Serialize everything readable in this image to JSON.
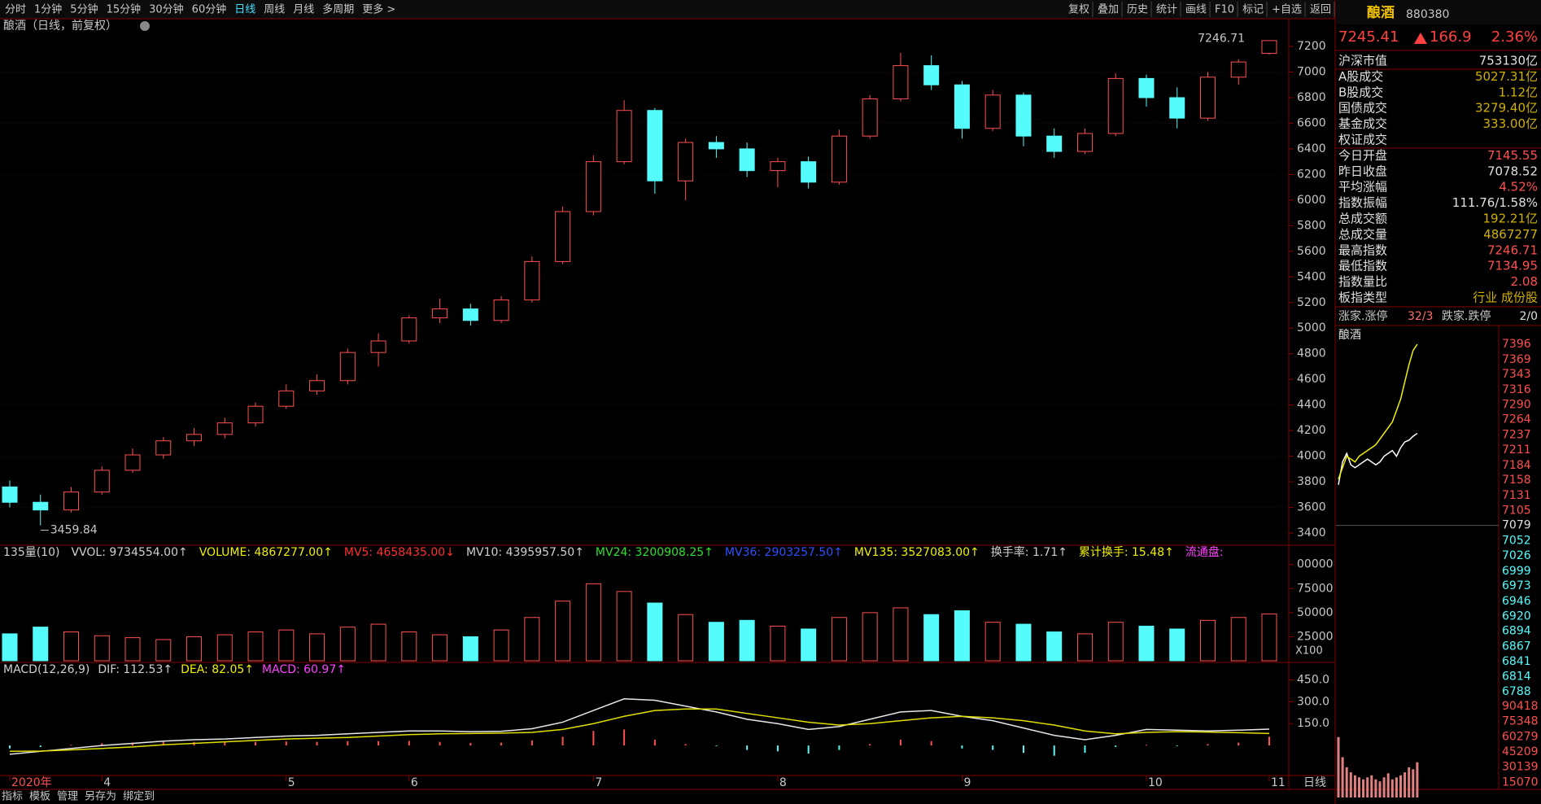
{
  "toolbar": {
    "periods": [
      "分时",
      "1分钟",
      "5分钟",
      "15分钟",
      "30分钟",
      "60分钟",
      "日线",
      "周线",
      "月线",
      "多周期",
      "更多 >"
    ],
    "active": "日线",
    "tools": [
      "复权",
      "叠加",
      "历史",
      "统计",
      "画线",
      "F10",
      "标记",
      "+自选",
      "返回"
    ]
  },
  "main": {
    "title": "酿酒（日线，前复权）",
    "ylim": [
      3311,
      7410
    ],
    "yticks": [
      3400,
      3600,
      3800,
      4000,
      4200,
      4400,
      4600,
      4800,
      5000,
      5200,
      5400,
      5600,
      5800,
      6000,
      6200,
      6400,
      6600,
      6800,
      7000,
      7200
    ],
    "candles": [
      [
        3760,
        3810,
        3600,
        3640
      ],
      [
        3640,
        3700,
        3459.84,
        3580
      ],
      [
        3580,
        3760,
        3560,
        3720
      ],
      [
        3720,
        3920,
        3700,
        3890
      ],
      [
        3890,
        4060,
        3870,
        4010
      ],
      [
        4010,
        4150,
        3980,
        4120
      ],
      [
        4120,
        4220,
        4080,
        4170
      ],
      [
        4170,
        4300,
        4140,
        4260
      ],
      [
        4260,
        4420,
        4230,
        4390
      ],
      [
        4390,
        4560,
        4370,
        4510
      ],
      [
        4510,
        4640,
        4480,
        4590
      ],
      [
        4590,
        4840,
        4560,
        4810
      ],
      [
        4810,
        4960,
        4700,
        4900
      ],
      [
        4900,
        5100,
        4880,
        5080
      ],
      [
        5080,
        5230,
        5040,
        5150
      ],
      [
        5150,
        5190,
        5020,
        5060
      ],
      [
        5060,
        5250,
        5040,
        5220
      ],
      [
        5220,
        5560,
        5200,
        5520
      ],
      [
        5520,
        5950,
        5500,
        5910
      ],
      [
        5910,
        6350,
        5880,
        6300
      ],
      [
        6300,
        6780,
        6280,
        6700
      ],
      [
        6700,
        6720,
        6050,
        6150
      ],
      [
        6150,
        6480,
        6000,
        6450
      ],
      [
        6450,
        6500,
        6330,
        6400
      ],
      [
        6400,
        6450,
        6180,
        6230
      ],
      [
        6230,
        6330,
        6100,
        6300
      ],
      [
        6300,
        6340,
        6090,
        6140
      ],
      [
        6140,
        6550,
        6120,
        6500
      ],
      [
        6500,
        6820,
        6480,
        6790
      ],
      [
        6790,
        7150,
        6770,
        7050
      ],
      [
        7050,
        7130,
        6860,
        6900
      ],
      [
        6900,
        6930,
        6480,
        6560
      ],
      [
        6560,
        6860,
        6540,
        6820
      ],
      [
        6820,
        6840,
        6420,
        6500
      ],
      [
        6500,
        6560,
        6330,
        6380
      ],
      [
        6380,
        6560,
        6360,
        6520
      ],
      [
        6520,
        6990,
        6500,
        6950
      ],
      [
        6950,
        6980,
        6730,
        6800
      ],
      [
        6800,
        6880,
        6560,
        6640
      ],
      [
        6640,
        7000,
        6620,
        6960
      ],
      [
        6960,
        7100,
        6900,
        7078.52
      ],
      [
        7145.55,
        7246.71,
        7134.95,
        7245.41
      ]
    ],
    "x_labels": [
      "2020年",
      null,
      null,
      "4",
      null,
      null,
      null,
      null,
      null,
      "5",
      null,
      null,
      null,
      "6",
      null,
      null,
      null,
      null,
      null,
      "7",
      null,
      null,
      null,
      null,
      null,
      "8",
      null,
      null,
      null,
      null,
      null,
      "9",
      null,
      null,
      null,
      null,
      null,
      "10",
      null,
      null,
      null,
      "11"
    ]
  },
  "volume": {
    "header": [
      {
        "text": "135量(10)",
        "color": "#d0d0d0"
      },
      {
        "text": "VVOL: 9734554.00↑",
        "color": "#d0d0d0"
      },
      {
        "text": "VOLUME: 4867277.00↑",
        "color": "#f0f000"
      },
      {
        "text": "MV5: 4658435.00↓",
        "color": "#ff3030"
      },
      {
        "text": "MV10: 4395957.50↑",
        "color": "#d0d0d0"
      },
      {
        "text": "MV24: 3200908.25↑",
        "color": "#30e030"
      },
      {
        "text": "MV36: 2903257.50↑",
        "color": "#3050ff"
      },
      {
        "text": "MV135: 3527083.00↑",
        "color": "#f0f000"
      },
      {
        "text": "换手率: 1.71↑",
        "color": "#d0d0d0"
      },
      {
        "text": "累计换手: 15.48↑",
        "color": "#f0f000"
      },
      {
        "text": "流通盘:",
        "color": "#ff40ff"
      }
    ],
    "ylim": [
      0,
      104000
    ],
    "yticks": [
      {
        "value": 100000,
        "label": "00000"
      },
      75000,
      50000,
      25000
    ],
    "unit": "X100",
    "values": [
      28000,
      35000,
      30000,
      26000,
      24000,
      22000,
      25000,
      27000,
      30000,
      32000,
      28000,
      35000,
      38000,
      30000,
      27000,
      25000,
      32000,
      45000,
      62000,
      80000,
      72000,
      60000,
      48000,
      40000,
      42000,
      36000,
      33000,
      45000,
      50000,
      55000,
      48000,
      52000,
      40000,
      38000,
      30000,
      28000,
      40000,
      36000,
      33000,
      42000,
      45000,
      48672.77
    ]
  },
  "macd": {
    "header": [
      {
        "text": "MACD(12,26,9)",
        "color": "#d0d0d0"
      },
      {
        "text": "DIF: 112.53↑",
        "color": "#d0d0d0"
      },
      {
        "text": "DEA: 82.05↑",
        "color": "#f0f000"
      },
      {
        "text": "MACD: 60.97↑",
        "color": "#ff40ff"
      }
    ],
    "ylim": [
      -200,
      525
    ],
    "yticks": [
      {
        "value": 450,
        "label": "450.0"
      },
      {
        "value": 300,
        "label": "300.0"
      },
      {
        "value": 150,
        "label": "150.0"
      }
    ],
    "hist": [
      -20,
      -10,
      5,
      15,
      20,
      25,
      25,
      22,
      25,
      28,
      25,
      30,
      30,
      32,
      25,
      18,
      20,
      35,
      60,
      100,
      110,
      40,
      10,
      -5,
      -30,
      -40,
      -55,
      -30,
      10,
      40,
      30,
      -20,
      -30,
      -50,
      -70,
      -50,
      -10,
      5,
      -5,
      10,
      20,
      60.97
    ],
    "dif": [
      -60,
      -40,
      -20,
      0,
      15,
      30,
      40,
      45,
      55,
      65,
      70,
      80,
      90,
      100,
      100,
      95,
      98,
      115,
      160,
      240,
      320,
      310,
      270,
      230,
      180,
      150,
      110,
      130,
      180,
      230,
      240,
      200,
      170,
      120,
      70,
      40,
      70,
      110,
      105,
      100,
      105,
      112.53
    ],
    "dea": [
      -40,
      -38,
      -30,
      -20,
      -10,
      5,
      15,
      25,
      35,
      45,
      50,
      55,
      65,
      75,
      80,
      82,
      85,
      90,
      110,
      150,
      200,
      240,
      250,
      250,
      220,
      190,
      160,
      140,
      150,
      170,
      190,
      200,
      190,
      170,
      140,
      100,
      80,
      90,
      95,
      92,
      88,
      82.05
    ]
  },
  "period_label": "日线",
  "right_panel": {
    "name": "酿酒",
    "code": "880380",
    "price": "7245.41",
    "change": "166.9",
    "pct": "2.36%",
    "rows": [
      {
        "label": "沪深市值",
        "value": "753130亿",
        "color": "#e0e0e0"
      },
      {
        "label": "A股成交",
        "value": "5027.31亿",
        "color": "#d0b000"
      },
      {
        "label": "B股成交",
        "value": "1.12亿",
        "color": "#d0b000"
      },
      {
        "label": "国债成交",
        "value": "3279.40亿",
        "color": "#d0b000"
      },
      {
        "label": "基金成交",
        "value": "333.00亿",
        "color": "#d0b000"
      },
      {
        "label": "权证成交"
      },
      {
        "label": "今日开盘",
        "value": "7145.55",
        "color": "#ff5050"
      },
      {
        "label": "昨日收盘",
        "value": "7078.52",
        "color": "#e0e0e0"
      },
      {
        "label": "平均涨幅",
        "value": "4.52%",
        "color": "#ff5050"
      },
      {
        "label": "指数振幅",
        "value": "111.76/1.58%",
        "color": "#e0e0e0"
      },
      {
        "label": "总成交额",
        "value": "192.21亿",
        "color": "#d0b000"
      },
      {
        "label": "总成交量",
        "value": "4867277",
        "color": "#d0b000"
      },
      {
        "label": "最高指数",
        "value": "7246.71",
        "color": "#ff5050"
      },
      {
        "label": "最低指数",
        "value": "7134.95",
        "color": "#ff5050"
      },
      {
        "label": "指数量比",
        "value": "2.08",
        "color": "#ff5050"
      },
      {
        "label": "板指类型",
        "value": "行业 成份股",
        "color": "#d0b000"
      }
    ],
    "breadth": {
      "up_label": "涨家.涨停",
      "up": "32/3",
      "down_label": "跌家.跌停",
      "down": "2/0"
    },
    "mini": {
      "title": "酿酒",
      "ylim": [
        6788,
        7396
      ],
      "yticks": [
        7396,
        7369,
        7343,
        7316,
        7290,
        7264,
        7237,
        7211,
        7184,
        7158,
        7131,
        7105,
        7079,
        7052,
        7026,
        6999,
        6973,
        6946,
        6920,
        6894,
        6867,
        6841,
        6814,
        6788
      ],
      "vlim": [
        0,
        101000
      ],
      "vticks": [
        90418,
        75348,
        60279,
        45209,
        30139,
        15070
      ],
      "yellow": [
        7160,
        7180,
        7200,
        7195,
        7190,
        7200,
        7205,
        7210,
        7215,
        7220,
        7230,
        7240,
        7250,
        7260,
        7280,
        7300,
        7330,
        7360,
        7385,
        7396
      ],
      "white": [
        7150,
        7190,
        7205,
        7185,
        7180,
        7185,
        7190,
        7195,
        7190,
        7185,
        7190,
        7200,
        7205,
        7210,
        7200,
        7215,
        7225,
        7228,
        7235,
        7240
      ],
      "volume": [
        60000,
        40000,
        30000,
        25000,
        22000,
        20000,
        18000,
        20000,
        22000,
        18000,
        16000,
        20000,
        24000,
        18000,
        20000,
        22000,
        25000,
        30000,
        28000,
        35000
      ]
    }
  },
  "bottom_tabs": [
    "指标",
    "模板",
    "管理",
    "另存为",
    "绑定到"
  ]
}
